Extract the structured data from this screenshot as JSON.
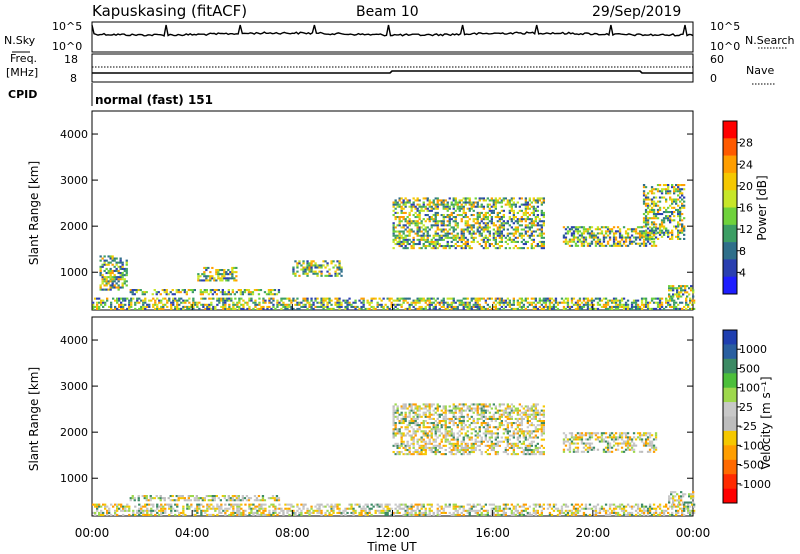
{
  "header": {
    "station": "Kapuskasing (fitACF)",
    "beam": "Beam 10",
    "date": "29/Sep/2019"
  },
  "noise_panel": {
    "left_label": "N.Sky",
    "right_label": "N.Search",
    "left_ticks": [
      "10^5",
      "10^0"
    ],
    "right_ticks": [
      "10^5",
      "10^0"
    ]
  },
  "freq_panel": {
    "left_label_line1": "Freq.",
    "left_label_line2": "[MHz]",
    "left_ticks": [
      "18",
      "8"
    ],
    "right_label": "Nave",
    "right_ticks": [
      "60",
      "0"
    ]
  },
  "cpid_panel": {
    "left_label": "CPID",
    "mode_text": "normal (fast) 151"
  },
  "x_axis": {
    "label": "Time UT",
    "ticks": [
      "00:00",
      "04:00",
      "08:00",
      "12:00",
      "16:00",
      "20:00",
      "00:00"
    ]
  },
  "chart_data": [
    {
      "type": "heatmap",
      "title": "Power",
      "ylabel": "Slant Range [km]",
      "xlabel": "Time UT",
      "ylim": [
        180,
        4500
      ],
      "y_ticks": [
        "1000",
        "2000",
        "3000",
        "4000"
      ],
      "colorbar_label": "Power [dB]",
      "colorbar_ticks": [
        "28",
        "24",
        "20",
        "16",
        "12",
        "8",
        "4"
      ],
      "colorbar_colors": [
        "#ff0000",
        "#ff5a00",
        "#ff9e00",
        "#f5c800",
        "#c7e62a",
        "#6fd23c",
        "#3c9e64",
        "#2f6f8a",
        "#2a3fb0",
        "#1e1eff"
      ],
      "regions": [
        {
          "t_start": 0.0,
          "t_end": 24.0,
          "range_min": 180,
          "range_max": 420,
          "level": "mixed-high"
        },
        {
          "t_start": 1.5,
          "t_end": 7.5,
          "range_min": 500,
          "range_max": 620,
          "level": "medium"
        },
        {
          "t_start": 0.3,
          "t_end": 1.4,
          "range_min": 600,
          "range_max": 1350,
          "level": "low"
        },
        {
          "t_start": 4.2,
          "t_end": 5.8,
          "range_min": 800,
          "range_max": 1100,
          "level": "low"
        },
        {
          "t_start": 8.0,
          "t_end": 10.0,
          "range_min": 900,
          "range_max": 1250,
          "level": "low"
        },
        {
          "t_start": 12.0,
          "t_end": 18.0,
          "range_min": 1500,
          "range_max": 2600,
          "level": "low"
        },
        {
          "t_start": 18.8,
          "t_end": 22.5,
          "range_min": 1550,
          "range_max": 2000,
          "level": "medium-high"
        },
        {
          "t_start": 22.0,
          "t_end": 23.6,
          "range_min": 1700,
          "range_max": 2900,
          "level": "low"
        },
        {
          "t_start": 23.0,
          "t_end": 24.0,
          "range_min": 450,
          "range_max": 700,
          "level": "high"
        }
      ]
    },
    {
      "type": "heatmap",
      "title": "Velocity",
      "ylabel": "Slant Range [km]",
      "xlabel": "Time UT",
      "ylim": [
        180,
        4500
      ],
      "y_ticks": [
        "1000",
        "2000",
        "3000",
        "4000"
      ],
      "colorbar_label": "Velocity [m s⁻¹]",
      "colorbar_ticks": [
        "1000",
        "500",
        "100",
        "25",
        "-25",
        "-100",
        "-500",
        "-1000"
      ],
      "colorbar_colors": [
        "#1f3fb0",
        "#2a5fa0",
        "#3c8a64",
        "#4cbf3a",
        "#9ed84c",
        "#c8c8c8",
        "#bdbdbd",
        "#f5c800",
        "#ff9e00",
        "#ff6a00",
        "#ff2a00",
        "#ff0000"
      ],
      "regions": [
        {
          "t_start": 0.0,
          "t_end": 24.0,
          "range_min": 180,
          "range_max": 420,
          "level": "mixed"
        },
        {
          "t_start": 1.5,
          "t_end": 7.5,
          "range_min": 500,
          "range_max": 620,
          "level": "near-zero"
        },
        {
          "t_start": 12.0,
          "t_end": 18.0,
          "range_min": 1500,
          "range_max": 2600,
          "level": "near-zero"
        },
        {
          "t_start": 18.8,
          "t_end": 22.5,
          "range_min": 1550,
          "range_max": 2000,
          "level": "near-zero"
        },
        {
          "t_start": 23.0,
          "t_end": 24.0,
          "range_min": 450,
          "range_max": 700,
          "level": "negative"
        }
      ]
    }
  ]
}
